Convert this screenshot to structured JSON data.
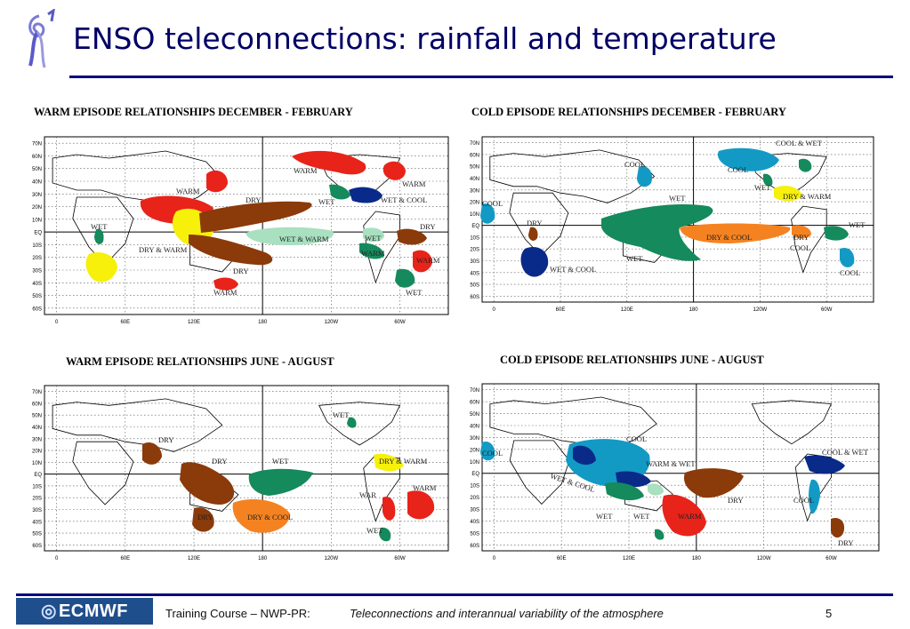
{
  "slide": {
    "title": "ENSO teleconnections: rainfall and temperature",
    "footer": {
      "logo_text": "ECMWF",
      "course": "Training Course – NWP-PR:",
      "subject": "Teleconnections and interannual variability of the atmosphere",
      "page": "5"
    }
  },
  "axes": {
    "lat_labels": [
      "70N",
      "60N",
      "50N",
      "40N",
      "30N",
      "20N",
      "10N",
      "EQ",
      "10S",
      "20S",
      "30S",
      "40S",
      "50S",
      "60S"
    ],
    "lon_labels": [
      "0",
      "60E",
      "120E",
      "180",
      "120W",
      "60W"
    ]
  },
  "colors": {
    "red": "#e8231a",
    "yellow": "#f6f00a",
    "brown": "#8b3a0a",
    "green": "#158a5c",
    "light_green": "#a8e0c0",
    "blue": "#0a2a8a",
    "cyan": "#129ac4",
    "orange": "#f58220"
  },
  "panels": [
    {
      "title": "WARM EPISODE RELATIONSHIPS    DECEMBER - FEBRUARY",
      "labels": [
        "WARM",
        "WARM",
        "DRY",
        "WET",
        "WET & COOL",
        "WARM",
        "WET",
        "DRY & WARM",
        "WET & WARM",
        "WET",
        "DRY",
        "WARM",
        "WARM",
        "DRY",
        "WARM",
        "WET"
      ]
    },
    {
      "title": "COLD EPISODE RELATIONSHIPS   DECEMBER - FEBRUARY",
      "labels": [
        "COOL & WET",
        "COOL",
        "COOL",
        "WET",
        "DRY & WARM",
        "COOL",
        "WET",
        "DRY",
        "WET",
        "DRY & COOL",
        "DRY",
        "COOL",
        "WET",
        "WET & COOL",
        "COOL"
      ]
    },
    {
      "title": "WARM EPISODE RELATIONSHIPS   JUNE - AUGUST",
      "labels": [
        "WET",
        "DRY",
        "DRY",
        "WET",
        "DRY & WARM",
        "WARM",
        "WAR",
        "DRY",
        "DRY & COOL",
        "WET"
      ]
    },
    {
      "title": "COLD EPISODE RELATIONSHIPS     JUNE - AUGUST",
      "labels": [
        "COOL",
        "COOL",
        "COOL & WET",
        "WARM & WET",
        "WET & COOL",
        "DRY",
        "COOL",
        "WET",
        "WET",
        "WARM",
        "DRY"
      ]
    }
  ]
}
